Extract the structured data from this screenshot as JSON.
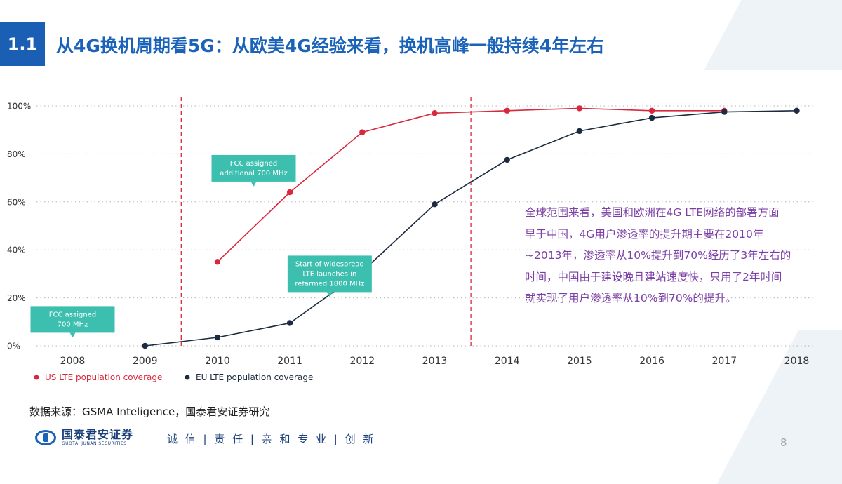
{
  "header": {
    "section": "1.1",
    "title": "从4G换机周期看5G：从欧美4G经验来看，换机高峰一般持续4年左右"
  },
  "chart_data": {
    "type": "line",
    "x": [
      2008,
      2009,
      2010,
      2011,
      2012,
      2013,
      2014,
      2015,
      2016,
      2017,
      2018
    ],
    "categories": [
      "2008",
      "2009",
      "2010",
      "2011",
      "2012",
      "2013",
      "2014",
      "2015",
      "2016",
      "2017",
      "2018"
    ],
    "yticks": [
      "0%",
      "20%",
      "40%",
      "60%",
      "80%",
      "100%"
    ],
    "ylim": [
      0,
      100
    ],
    "grid": "horizontal dotted",
    "legend_position": "bottom-left",
    "series": [
      {
        "name": "US LTE population coverage",
        "color": "#d9273e",
        "x": [
          2010,
          2011,
          2012,
          2013,
          2014,
          2015,
          2016,
          2017
        ],
        "values": [
          35,
          64,
          89,
          97,
          98,
          99,
          98,
          98
        ]
      },
      {
        "name": "EU LTE population coverage",
        "color": "#1c2b40",
        "x": [
          2009,
          2010,
          2011,
          2012,
          2013,
          2014,
          2015,
          2016,
          2017,
          2018
        ],
        "values": [
          0,
          3.5,
          9.5,
          31,
          59,
          77.5,
          89.5,
          95,
          97.5,
          98
        ]
      }
    ],
    "vlines": [
      2009.5,
      2013.5
    ],
    "callouts": [
      {
        "lines": [
          "FCC assigned",
          "700 MHz"
        ],
        "x": 2008,
        "y": 11
      },
      {
        "lines": [
          "FCC assigned",
          "additional 700 MHz"
        ],
        "x": 2010.5,
        "y": 74
      },
      {
        "lines": [
          "Start of widespread",
          "LTE launches in",
          "refarmed 1800 MHz"
        ],
        "x": 2011.55,
        "y": 30
      }
    ]
  },
  "annotation": {
    "lines": [
      "全球范围来看，美国和欧洲在4G LTE网络的部署方面",
      "早于中国，4G用户渗透率的提升期主要在2010年",
      "~2013年，渗透率从10%提升到70%经历了3年左右的",
      "时间，中国由于建设晚且建站速度快，只用了2年时间",
      "就实现了用户渗透率从10%到70%的提升。"
    ]
  },
  "footer": {
    "source": "数据来源：GSMA Inteligence，国泰君安证券研究",
    "company_cn": "国泰君安证券",
    "company_en": "GUOTAI JUNAN SECURITIES",
    "slogan": "诚 信 | 责 任 | 亲 和  专 业 | 创 新",
    "page": "8"
  }
}
